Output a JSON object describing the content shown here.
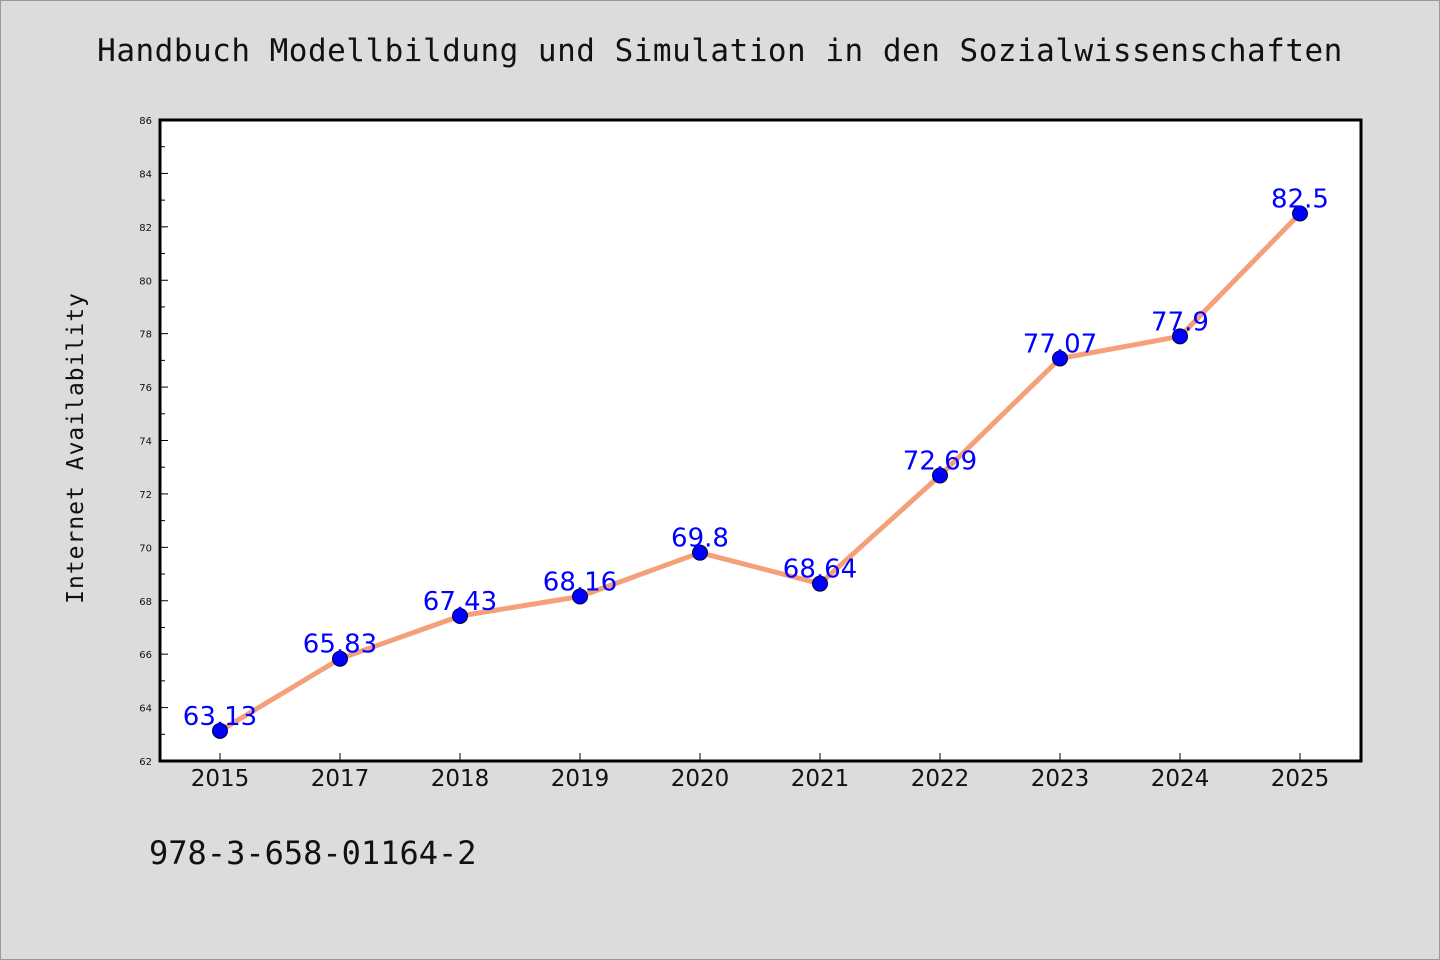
{
  "chart_data": {
    "type": "line",
    "title": "Handbuch Modellbildung und Simulation in den Sozialwissenschaften",
    "xlabel": "",
    "ylabel": "Internet Availability",
    "categories": [
      "2015",
      "2017",
      "2018",
      "2019",
      "2020",
      "2021",
      "2022",
      "2023",
      "2024",
      "2025"
    ],
    "series": [
      {
        "values": [
          63.13,
          65.83,
          67.43,
          68.16,
          69.8,
          68.64,
          72.69,
          77.07,
          77.9,
          82.5
        ],
        "labels": [
          "63.13",
          "65.83",
          "67.43",
          "68.16",
          "69.8",
          "68.64",
          "72.69",
          "77.07",
          "77.9",
          "82.5"
        ]
      }
    ],
    "ylim": [
      62,
      86
    ],
    "yticks": [
      62,
      64,
      66,
      68,
      70,
      72,
      74,
      76,
      78,
      80,
      82,
      84,
      86
    ],
    "grid": false,
    "line_color": "#f4a07a",
    "marker_color": "#0000ff",
    "label_color": "#0000ff",
    "annotation": "978-3-658-01164-2"
  }
}
